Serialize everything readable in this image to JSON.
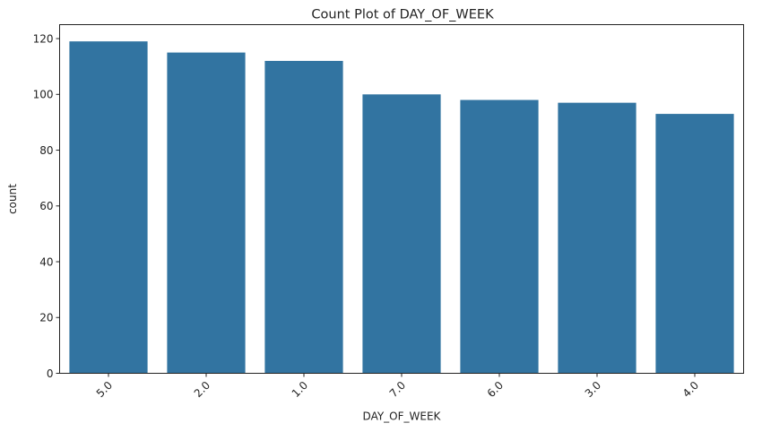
{
  "chart_data": {
    "type": "bar",
    "title": "Count Plot of DAY_OF_WEEK",
    "xlabel": "DAY_OF_WEEK",
    "ylabel": "count",
    "categories": [
      "5.0",
      "2.0",
      "1.0",
      "7.0",
      "6.0",
      "3.0",
      "4.0"
    ],
    "values": [
      119,
      115,
      112,
      100,
      98,
      97,
      93
    ],
    "ylim": [
      0,
      125
    ],
    "yticks": [
      0,
      20,
      40,
      60,
      80,
      100,
      120
    ],
    "grid": false,
    "bar_color": "#3274a1",
    "xtick_rotation_deg": 45
  }
}
